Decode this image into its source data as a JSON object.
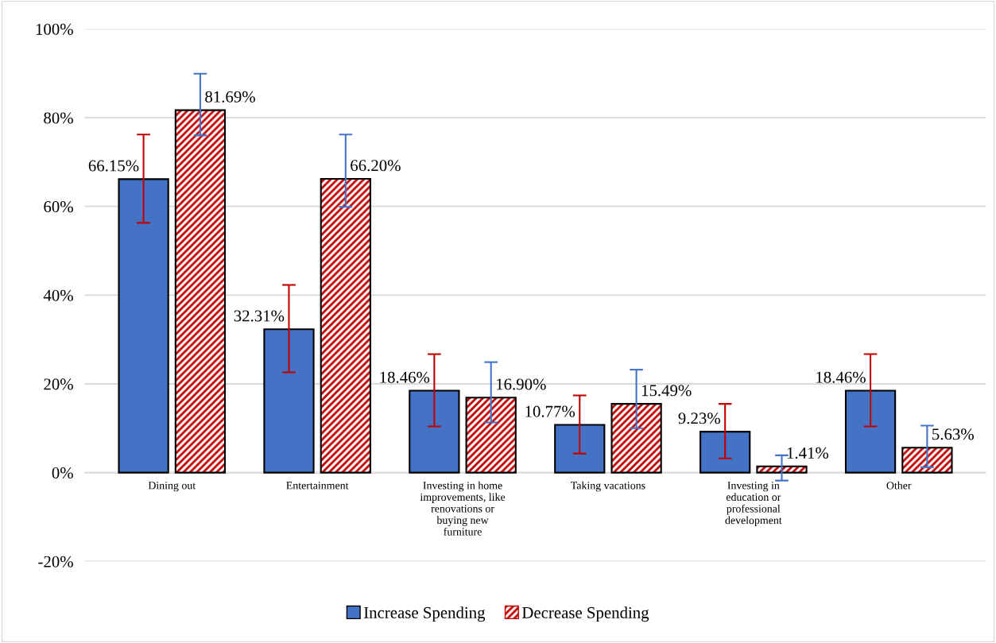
{
  "chart_data": {
    "type": "bar",
    "categories": [
      "Dining out",
      "Entertainment",
      "Investing in home\nimprovements, like\nrenovations or\nbuying new\nfurniture",
      "Taking vacations",
      "Investing in\neducation or\nprofessional\ndevelopment",
      "Other"
    ],
    "series": [
      {
        "name": "Increase Spending",
        "color": "#4472c4",
        "values": [
          66.15,
          32.31,
          18.46,
          10.77,
          9.23,
          18.46
        ],
        "value_labels": [
          "66.15%",
          "32.31%",
          "18.46%",
          "10.77%",
          "9.23%",
          "18.46%"
        ],
        "errors": [
          [
            56.3,
            76.2
          ],
          [
            22.6,
            42.3
          ],
          [
            10.4,
            26.7
          ],
          [
            4.3,
            17.4
          ],
          [
            3.2,
            15.5
          ],
          [
            10.4,
            26.7
          ]
        ]
      },
      {
        "name": "Decrease Spending",
        "color": "#c00000",
        "values": [
          81.69,
          66.2,
          16.9,
          15.49,
          1.41,
          5.63
        ],
        "value_labels": [
          "81.69%",
          "66.20%",
          "16.90%",
          "15.49%",
          "1.41%",
          "5.63%"
        ],
        "errors": [
          [
            76.0,
            89.9
          ],
          [
            59.9,
            76.2
          ],
          [
            11.3,
            24.9
          ],
          [
            10.0,
            23.2
          ],
          [
            -1.8,
            3.9
          ],
          [
            1.2,
            10.6
          ]
        ]
      }
    ],
    "ylim": [
      -20,
      100
    ],
    "yticks": [
      {
        "value": -20,
        "label": "-20%"
      },
      {
        "value": 0,
        "label": "0%"
      },
      {
        "value": 20,
        "label": "20%"
      },
      {
        "value": 40,
        "label": "40%"
      },
      {
        "value": 60,
        "label": "60%"
      },
      {
        "value": 80,
        "label": "80%"
      },
      {
        "value": 100,
        "label": "100%"
      }
    ],
    "grid": "y",
    "legend": "bottom"
  }
}
